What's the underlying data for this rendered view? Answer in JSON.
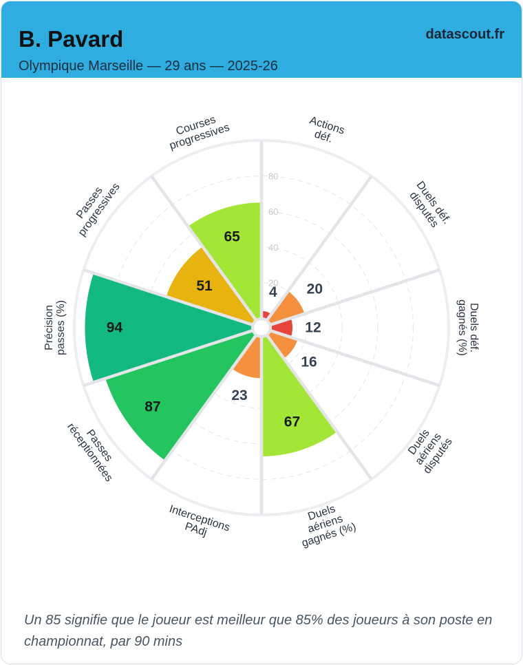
{
  "header": {
    "name": "B. Pavard",
    "subtitle": "Olympique Marseille — 29 ans — 2025-26",
    "brand": "datascout.fr"
  },
  "footnote": "Un 85 signifie que le joueur est meilleur que 85% des joueurs à son poste en championnat, par 90 mins",
  "colors": {
    "header_bg": "#2fade0",
    "very_low": "#e8453c",
    "low": "#f5913e",
    "medium": "#e8b30f",
    "good": "#a3e635",
    "high": "#22c55e",
    "very_high": "#12b981"
  },
  "chart_data": {
    "type": "polar-bar",
    "scale": [
      0,
      100
    ],
    "ticks": [
      20,
      40,
      60,
      80
    ],
    "categories": [
      [
        "Actions",
        "déf."
      ],
      [
        "Duels déf.",
        "disputés"
      ],
      [
        "Duels déf.",
        "gagnés (%)"
      ],
      [
        "Duels",
        "aériens",
        "disputés"
      ],
      [
        "Duels",
        "aériens",
        "gagnés (%)"
      ],
      [
        "Interceptions",
        "PAdj"
      ],
      [
        "Passes",
        "réceptionnées"
      ],
      [
        "Précision",
        "passes (%)"
      ],
      [
        "Passes",
        "progressives"
      ],
      [
        "Courses",
        "progressives"
      ]
    ],
    "values": [
      4,
      20,
      12,
      16,
      67,
      23,
      87,
      94,
      51,
      65
    ],
    "value_labels": [
      "4",
      "20",
      "12",
      "16",
      "67",
      "23",
      "87",
      "94",
      "51",
      "65"
    ],
    "tick_labels": [
      "20",
      "40",
      "60",
      "80"
    ]
  }
}
